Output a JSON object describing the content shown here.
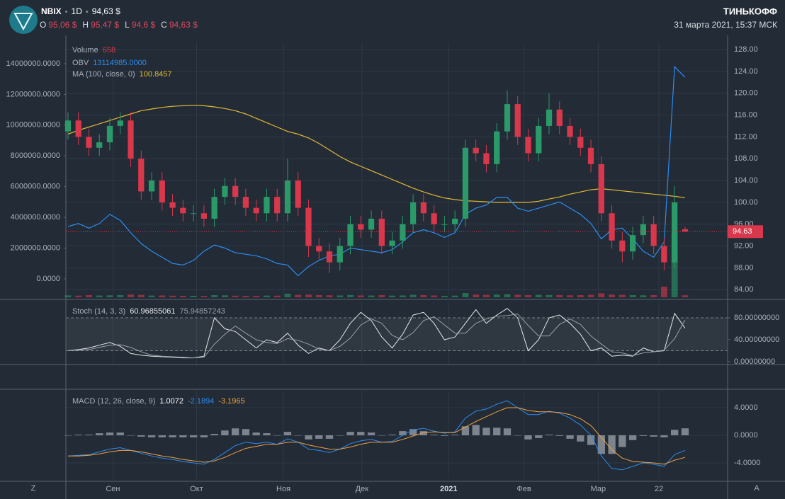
{
  "header": {
    "symbol": "NBIX",
    "interval": "1D",
    "price": "94,63 $",
    "ohlc": [
      {
        "label": "O",
        "value": "95,06 $"
      },
      {
        "label": "H",
        "value": "95,47 $"
      },
      {
        "label": "L",
        "value": "94,6 $"
      },
      {
        "label": "C",
        "value": "94,63 $"
      }
    ],
    "brand": "ТИНЬКОФФ",
    "datetime": "31 марта 2021, 15:37 МСК"
  },
  "corner_labels": [
    "Z",
    "A"
  ],
  "chart_data": {
    "type": "candlestick",
    "xlim": [
      -0.2,
      63.07
    ],
    "xticks": [
      {
        "value": 4.3,
        "label": "Сен"
      },
      {
        "value": 12.3,
        "label": "Окт"
      },
      {
        "value": 20.6,
        "label": "Ноя"
      },
      {
        "value": 28.1,
        "label": "Дек"
      },
      {
        "value": 36.4,
        "label": "2021"
      },
      {
        "value": 43.6,
        "label": "Фев"
      },
      {
        "value": 50.7,
        "label": "Мар"
      },
      {
        "value": 56.5,
        "label": "22"
      }
    ],
    "ylim": [
      82.6,
      129.3
    ],
    "yticks": [
      {
        "value": 84,
        "label": "84.00"
      },
      {
        "value": 88,
        "label": "88.00"
      },
      {
        "value": 92,
        "label": "92.00"
      },
      {
        "value": 96,
        "label": "96.00"
      },
      {
        "value": 100,
        "label": "100.00"
      },
      {
        "value": 104,
        "label": "104.00"
      },
      {
        "value": 108,
        "label": "108.00"
      },
      {
        "value": 112,
        "label": "112.00"
      },
      {
        "value": 116,
        "label": "116.00"
      },
      {
        "value": 120,
        "label": "120.00"
      },
      {
        "value": 124,
        "label": "124.00"
      },
      {
        "value": 128,
        "label": "128.00"
      }
    ],
    "y2lim": [
      -1200000,
      15380000
    ],
    "y2ticks": [
      {
        "value": 0,
        "label": "0.0000"
      },
      {
        "value": 2000000,
        "label": "2000000.0000"
      },
      {
        "value": 4000000,
        "label": "4000000.0000"
      },
      {
        "value": 6000000,
        "label": "6000000.0000"
      },
      {
        "value": 8000000,
        "label": "8000000.0000"
      },
      {
        "value": 10000000,
        "label": "10000000.0000"
      },
      {
        "value": 12000000,
        "label": "12000000.0000"
      },
      {
        "value": 14000000,
        "label": "14000000.0000"
      }
    ],
    "up_color": "#2a9a68",
    "down_color": "#d9374b",
    "open": [
      113,
      115,
      112,
      110,
      111,
      114,
      115,
      108,
      102,
      104,
      100,
      99,
      98,
      98,
      97,
      101,
      103,
      101,
      99,
      98,
      101,
      98,
      104,
      99,
      92,
      91,
      89,
      92,
      96,
      95,
      97,
      92,
      93,
      96,
      100,
      98,
      96,
      96,
      97,
      110,
      109,
      107,
      113,
      118,
      112,
      109,
      114,
      117,
      114,
      112,
      110,
      107,
      98,
      93,
      91,
      94,
      96,
      92,
      89,
      95.06
    ],
    "high": [
      116.5,
      116.5,
      113.5,
      112.5,
      115.5,
      116.5,
      116.5,
      109.5,
      105.5,
      105.5,
      101.5,
      100.5,
      99.5,
      99.5,
      102.5,
      104.5,
      104.5,
      102.5,
      100.5,
      102.5,
      102.5,
      108,
      105.5,
      100.5,
      93.5,
      92.5,
      93.5,
      97.5,
      97.5,
      98.5,
      98.5,
      94.5,
      97.5,
      101.5,
      101.5,
      99.5,
      97.5,
      98.5,
      111.5,
      111.5,
      110.5,
      114.5,
      120.5,
      119.5,
      113.5,
      115.5,
      120,
      118.5,
      115.5,
      113.5,
      111.5,
      108.5,
      99.5,
      94.5,
      95.5,
      97.5,
      97.5,
      93.5,
      103,
      95.47
    ],
    "low": [
      111.5,
      110.5,
      108.5,
      108.5,
      109.5,
      112.5,
      106.5,
      100.5,
      100.5,
      98.5,
      97.5,
      96.5,
      96.5,
      95.5,
      95.5,
      99.5,
      99.5,
      97.5,
      96.5,
      96.5,
      96.5,
      96.5,
      97.5,
      90,
      89.5,
      87,
      87.5,
      90.5,
      93.5,
      93.5,
      90.5,
      90.5,
      91.5,
      94.5,
      96.5,
      94.5,
      94.5,
      94.5,
      95.5,
      107.5,
      105.5,
      105.5,
      111.5,
      110.5,
      107.5,
      107.5,
      112.5,
      112.5,
      110.5,
      108.5,
      105.5,
      96.5,
      91.5,
      89,
      89.5,
      92.5,
      90.5,
      87.5,
      88,
      94.6
    ],
    "close": [
      115,
      112,
      110,
      111,
      114,
      115,
      108,
      102,
      104,
      100,
      99,
      98,
      98,
      97,
      101,
      103,
      101,
      99,
      98,
      101,
      98,
      104,
      99,
      92,
      91,
      89,
      92,
      96,
      95,
      97,
      92,
      93,
      96,
      100,
      98,
      96,
      96,
      97,
      110,
      109,
      107,
      113,
      118,
      112,
      109,
      114,
      117,
      114,
      112,
      110,
      107,
      98,
      93,
      91,
      94,
      96,
      92,
      89,
      100,
      94.63
    ],
    "last_price_label": "94.63",
    "volume": {
      "name": "Volume",
      "last_label": "658",
      "values": [
        620,
        540,
        700,
        580,
        650,
        720,
        900,
        800,
        560,
        600,
        520,
        480,
        500,
        450,
        700,
        650,
        520,
        480,
        500,
        560,
        540,
        1200,
        800,
        900,
        700,
        650,
        600,
        750,
        600,
        580,
        700,
        550,
        600,
        800,
        700,
        600,
        500,
        550,
        1400,
        900,
        800,
        900,
        1000,
        850,
        700,
        800,
        750,
        700,
        650,
        700,
        800,
        1300,
        900,
        800,
        700,
        650,
        700,
        3500,
        21000,
        658
      ]
    },
    "obv": {
      "name": "OBV",
      "last_label": "13114985.0000",
      "color": "#2d8cf0",
      "axis": "y2",
      "values": [
        3400000,
        3600000,
        3300000,
        3600000,
        4200000,
        3800000,
        3000000,
        2300000,
        1800000,
        1400000,
        1000000,
        900000,
        1200000,
        1800000,
        2200000,
        2000000,
        1700000,
        1600000,
        1500000,
        1300000,
        1000000,
        900000,
        200000,
        800000,
        1200000,
        1500000,
        1600000,
        2000000,
        1900000,
        1800000,
        1700000,
        1900000,
        2400000,
        3000000,
        3200000,
        3000000,
        2700000,
        3000000,
        4200000,
        4600000,
        4800000,
        5300000,
        5300000,
        4600000,
        4400000,
        4600000,
        4800000,
        5000000,
        4600000,
        4200000,
        3600000,
        2600000,
        3200000,
        3300000,
        2600000,
        1800000,
        1400000,
        2400000,
        13800000,
        13114985
      ]
    },
    "ma": {
      "name": "MA (100, close, 0)",
      "last_label": "100.8457",
      "color": "#e5b935",
      "values": [
        112.5,
        113.2,
        113.8,
        114.4,
        115,
        115.6,
        116.2,
        116.8,
        117.1,
        117.4,
        117.6,
        117.7,
        117.8,
        117.7,
        117.5,
        117.2,
        116.8,
        116.2,
        115.4,
        114.6,
        113.8,
        113,
        112.5,
        111.8,
        110.8,
        109.6,
        108.4,
        107.4,
        106.6,
        105.8,
        105,
        104.2,
        103.4,
        102.6,
        101.9,
        101.3,
        100.8,
        100.5,
        100.3,
        100.2,
        100.1,
        100,
        100,
        100,
        100,
        100.2,
        100.6,
        101,
        101.5,
        101.9,
        102.3,
        102.5,
        102.3,
        102.1,
        101.9,
        101.7,
        101.5,
        101.3,
        101.1,
        100.8457
      ]
    },
    "stoch": {
      "name": "Stoch (14, 3, 3)",
      "ylim": [
        -5.2,
        109.7
      ],
      "yticks": [
        {
          "value": 0,
          "label": "0.00000000"
        },
        {
          "value": 40,
          "label": "40.00000000"
        },
        {
          "value": 80,
          "label": "80.00000000"
        }
      ],
      "bands": [
        20,
        80
      ],
      "series": [
        {
          "color": "#e6e6e6",
          "last_label": "60.96855061",
          "values": [
            20,
            22,
            25,
            30,
            35,
            28,
            15,
            12,
            10,
            9,
            8,
            7,
            7,
            10,
            80,
            60,
            55,
            40,
            25,
            40,
            35,
            52,
            30,
            15,
            25,
            20,
            40,
            70,
            90,
            75,
            45,
            25,
            50,
            85,
            90,
            70,
            40,
            45,
            70,
            95,
            70,
            85,
            97,
            80,
            20,
            40,
            80,
            85,
            70,
            50,
            20,
            25,
            10,
            12,
            10,
            25,
            18,
            20,
            88,
            60.96855061
          ]
        },
        {
          "color": "#9aa0a8",
          "last_label": "75.94857243",
          "values": [
            20,
            21,
            22,
            26,
            30,
            31,
            26,
            18,
            12,
            10,
            9,
            8,
            7,
            8,
            32,
            50,
            65,
            52,
            40,
            35,
            33,
            42,
            39,
            32,
            23,
            20,
            28,
            43,
            67,
            78,
            70,
            48,
            40,
            53,
            75,
            82,
            67,
            52,
            52,
            70,
            78,
            83,
            84,
            87,
            66,
            47,
            47,
            68,
            78,
            68,
            47,
            32,
            18,
            16,
            11,
            16,
            18,
            21,
            42,
            75.94857243
          ]
        }
      ]
    },
    "macd": {
      "name": "MACD (12, 26, close, 9)",
      "ylim": [
        -6.36,
        6.46
      ],
      "yticks": [
        {
          "value": -4,
          "label": "-4.0000"
        },
        {
          "value": 0,
          "label": "0.0000"
        },
        {
          "value": 4,
          "label": "4.0000"
        }
      ],
      "histogram": {
        "color": "#7d848d",
        "last_label": "1.0072",
        "values": [
          0,
          0.1,
          0.1,
          0.3,
          0.4,
          0.4,
          0,
          -0.2,
          -0.3,
          -0.3,
          -0.3,
          -0.3,
          -0.3,
          -0.3,
          0.2,
          0.7,
          1.0,
          0.9,
          0.4,
          0.3,
          0,
          0.5,
          0,
          -0.6,
          -0.5,
          -0.5,
          0,
          0.5,
          0.5,
          0.4,
          0,
          0.1,
          0.6,
          0.9,
          0.6,
          0.1,
          -0.1,
          0.1,
          1.3,
          1.5,
          1.1,
          1.1,
          1.0,
          0,
          -0.6,
          -0.4,
          0.1,
          -0.1,
          -0.5,
          -0.9,
          -1.4,
          -2.7,
          -2.7,
          -1.7,
          -0.7,
          -0.1,
          -0.2,
          -0.3,
          0.8,
          1.0072
        ]
      },
      "series": [
        {
          "color": "#2d8cf0",
          "last_label": "-2.1894",
          "values": [
            -3.0,
            -2.9,
            -2.8,
            -2.4,
            -2.0,
            -1.8,
            -2.2,
            -2.6,
            -3.0,
            -3.3,
            -3.5,
            -3.8,
            -4.0,
            -4.2,
            -3.5,
            -2.5,
            -1.5,
            -1.0,
            -1.2,
            -1.0,
            -1.3,
            -0.5,
            -1.0,
            -2.0,
            -2.2,
            -2.5,
            -2.0,
            -1.2,
            -0.8,
            -0.6,
            -1.0,
            -0.9,
            0.0,
            0.8,
            1.0,
            0.6,
            0.3,
            0.5,
            2.5,
            3.5,
            3.8,
            4.5,
            5.0,
            4.0,
            3.0,
            3.0,
            3.5,
            3.2,
            2.5,
            1.5,
            0.0,
            -3.0,
            -4.8,
            -5.0,
            -4.5,
            -4.0,
            -4.2,
            -4.5,
            -2.8,
            -2.1894
          ]
        },
        {
          "color": "#f0a040",
          "last_label": "-3.1965",
          "values": [
            -3.0,
            -3.0,
            -2.9,
            -2.7,
            -2.4,
            -2.2,
            -2.2,
            -2.4,
            -2.7,
            -3.0,
            -3.2,
            -3.5,
            -3.7,
            -3.9,
            -3.7,
            -3.2,
            -2.5,
            -1.9,
            -1.6,
            -1.3,
            -1.3,
            -1.0,
            -1.0,
            -1.4,
            -1.7,
            -2.0,
            -2.0,
            -1.7,
            -1.3,
            -1.0,
            -1.0,
            -1.0,
            -0.6,
            -0.1,
            0.4,
            0.5,
            0.4,
            0.4,
            1.2,
            2.0,
            2.7,
            3.4,
            4.0,
            4.0,
            3.6,
            3.4,
            3.4,
            3.3,
            3.0,
            2.4,
            1.4,
            -0.3,
            -2.1,
            -3.3,
            -3.8,
            -3.9,
            -4.0,
            -4.2,
            -3.6,
            -3.1965
          ]
        }
      ]
    }
  }
}
